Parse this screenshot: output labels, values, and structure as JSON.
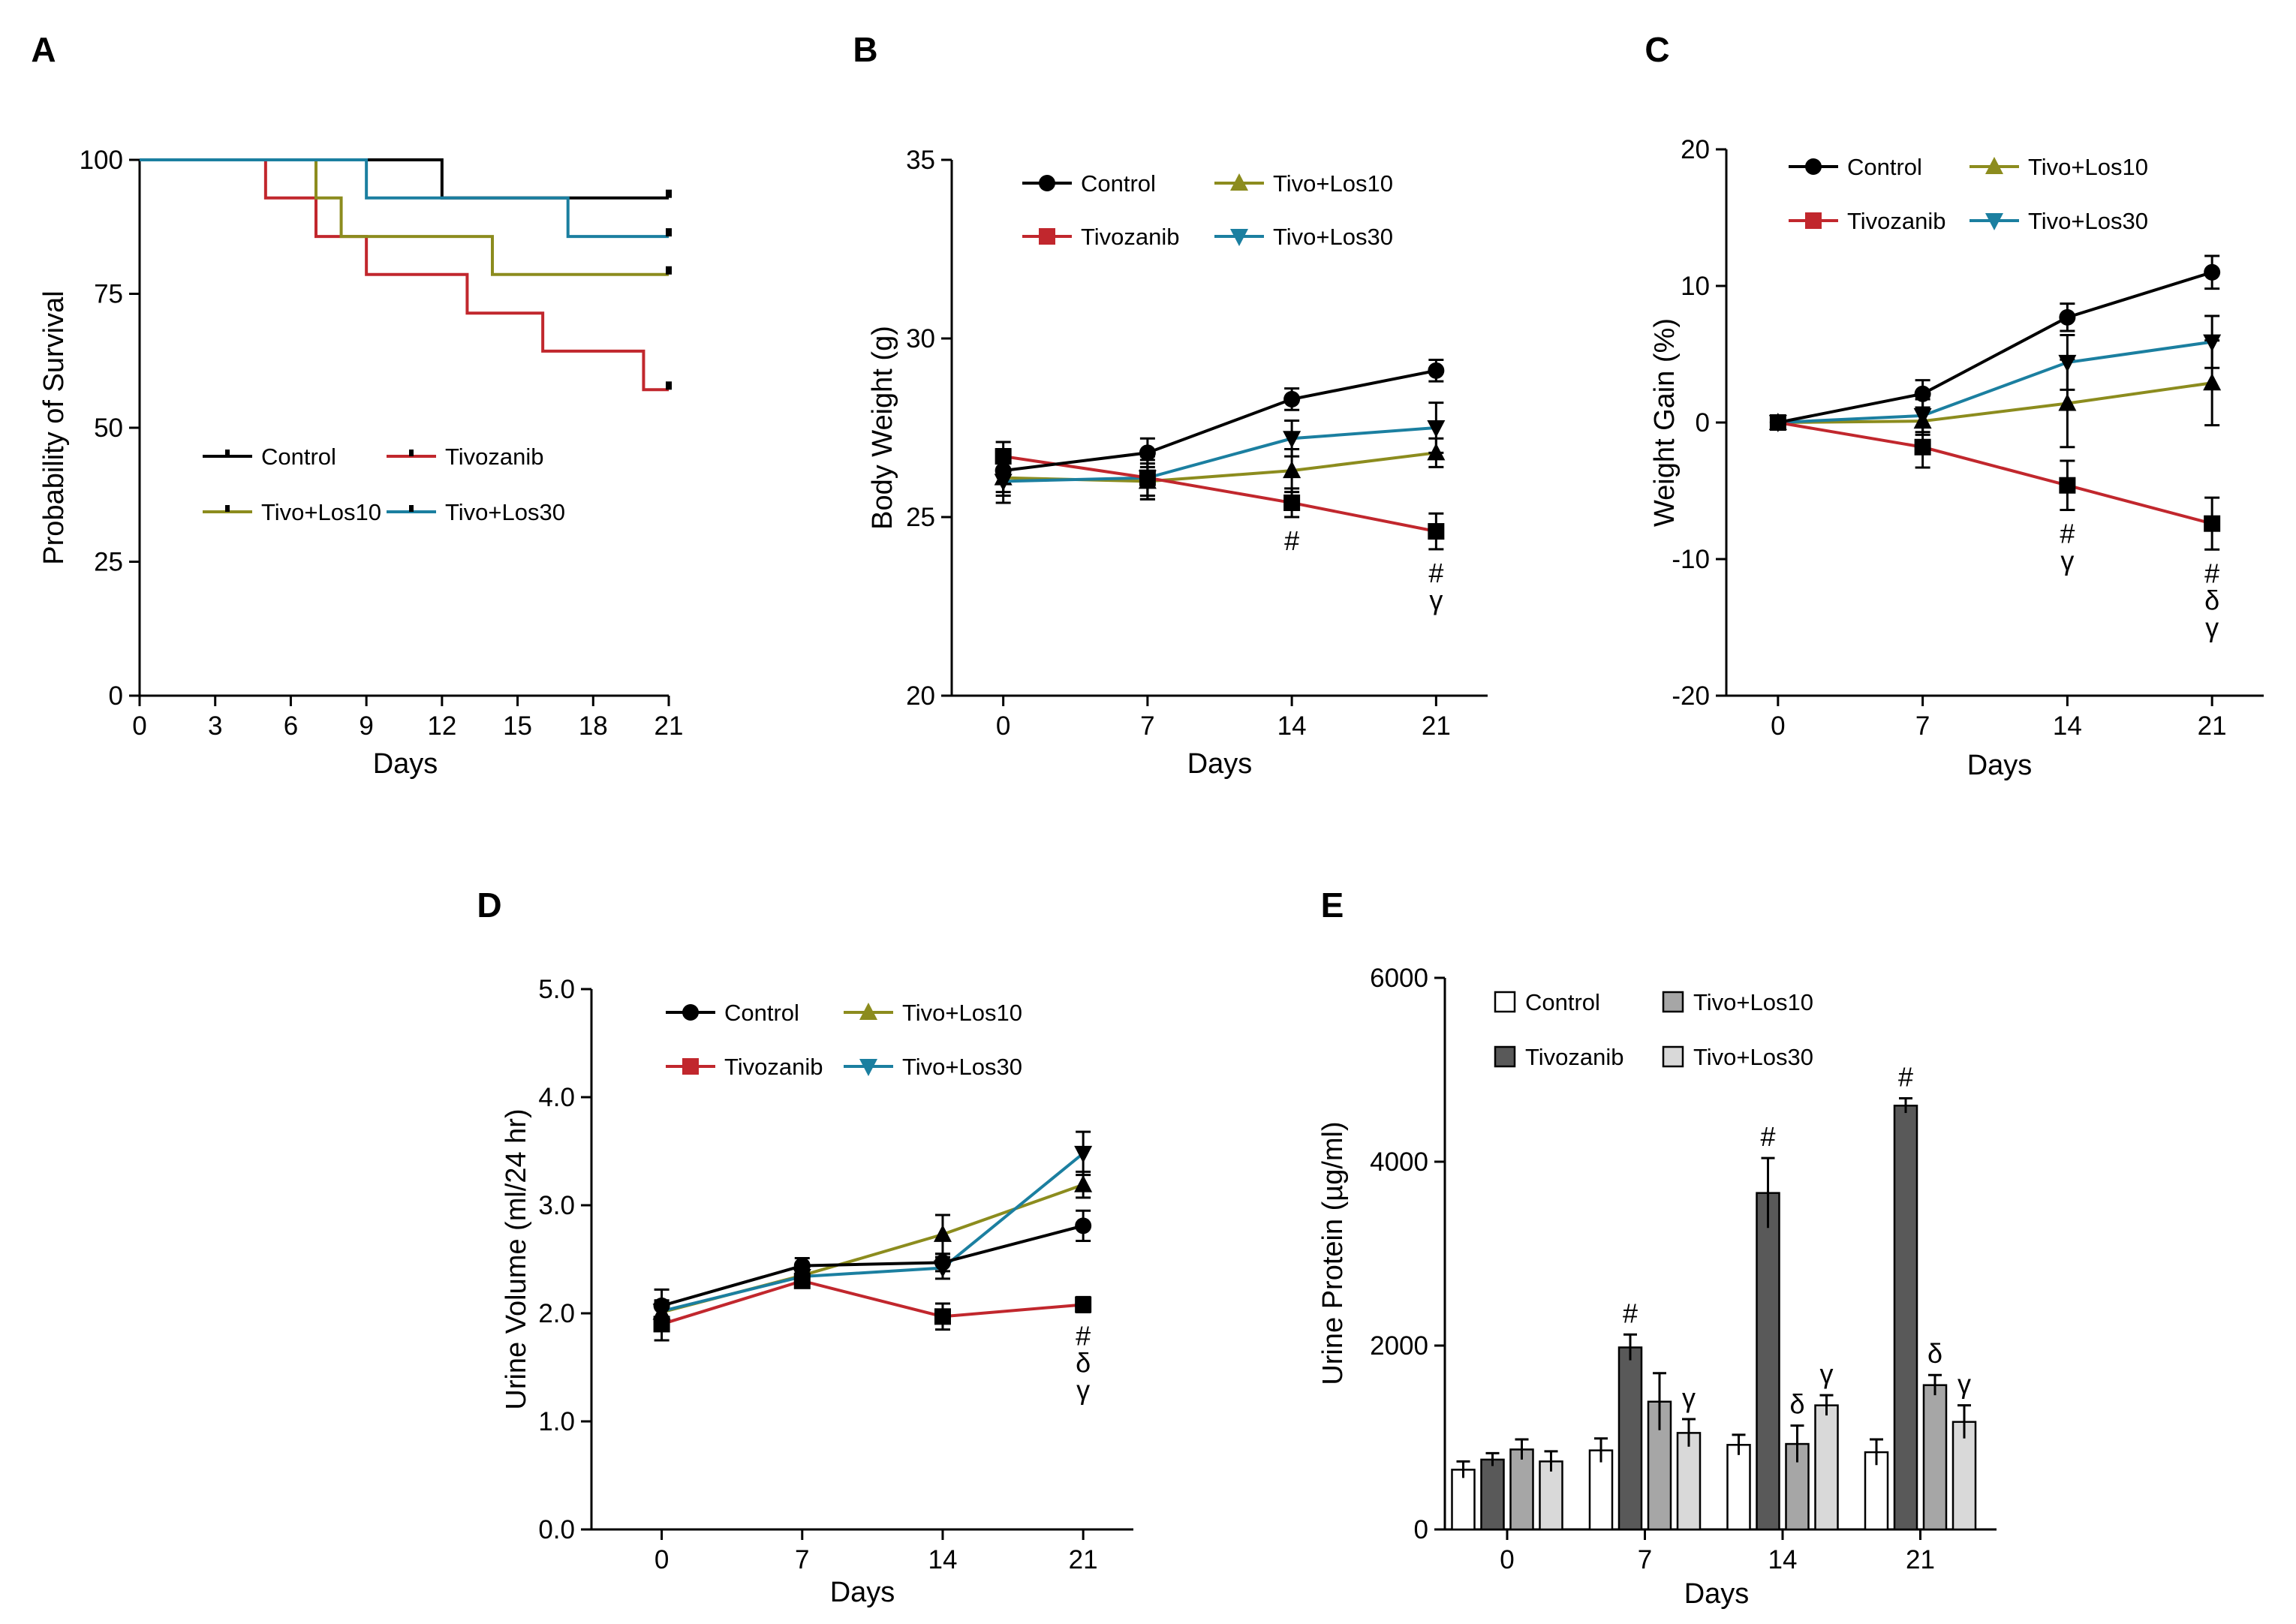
{
  "figure": {
    "colors": {
      "Control": "#000000",
      "Tivozanib": "#c1272d",
      "Tivo+Los10": "#8c8c1e",
      "Tivo+Los30": "#1b7fa0"
    },
    "bar_colors": {
      "Control": "#ffffff",
      "Tivozanib": "#595959",
      "Tivo+Los10": "#a6a6a6",
      "Tivo+Los30": "#d9d9d9"
    }
  },
  "chart_data": [
    {
      "id": "A",
      "label": "A",
      "type": "line",
      "subtype": "kaplan-meier",
      "xlabel": "Days",
      "ylabel": "Probability of Survival",
      "xlim": [
        0,
        21
      ],
      "ylim": [
        0,
        100
      ],
      "xticks": [
        0,
        3,
        6,
        9,
        12,
        15,
        18,
        21
      ],
      "xtick_labels": [
        "0",
        "3",
        "6",
        "9",
        "12",
        "15",
        "18",
        "21"
      ],
      "yticks": [
        0,
        25,
        50,
        75,
        100
      ],
      "ytick_labels": [
        "0",
        "25",
        "50",
        "75",
        "100"
      ],
      "legend": [
        "Control",
        "Tivozanib",
        "Tivo+Los10",
        "Tivo+Los30"
      ],
      "series": [
        {
          "name": "Control",
          "steps": [
            [
              0,
              100
            ],
            [
              12,
              92.9
            ],
            [
              21,
              92.9
            ]
          ]
        },
        {
          "name": "Tivozanib",
          "steps": [
            [
              0,
              100
            ],
            [
              5,
              92.9
            ],
            [
              7,
              85.7
            ],
            [
              9,
              78.6
            ],
            [
              13,
              71.4
            ],
            [
              16,
              64.3
            ],
            [
              20,
              57.1
            ],
            [
              21,
              57.1
            ]
          ]
        },
        {
          "name": "Tivo+Los10",
          "steps": [
            [
              0,
              100
            ],
            [
              7,
              92.9
            ],
            [
              8,
              85.7
            ],
            [
              14,
              78.6
            ],
            [
              21,
              78.6
            ]
          ]
        },
        {
          "name": "Tivo+Los30",
          "steps": [
            [
              0,
              100
            ],
            [
              9,
              92.9
            ],
            [
              17,
              85.7
            ],
            [
              21,
              85.7
            ]
          ]
        }
      ]
    },
    {
      "id": "B",
      "label": "B",
      "type": "line",
      "xlabel": "Days",
      "ylabel": "Body Weight (g)",
      "xlim": [
        -2.5,
        23.5
      ],
      "ylim": [
        20,
        35
      ],
      "xticks": [
        0,
        7,
        14,
        21
      ],
      "xtick_labels": [
        "0",
        "7",
        "14",
        "21"
      ],
      "yticks": [
        20,
        25,
        30,
        35
      ],
      "ytick_labels": [
        "20",
        "25",
        "30",
        "35"
      ],
      "legend": [
        "Control",
        "Tivo+Los10",
        "Tivozanib",
        "Tivo+Los30"
      ],
      "x": [
        0,
        7,
        14,
        21
      ],
      "series": [
        {
          "name": "Control",
          "marker": "circle",
          "values": [
            26.3,
            26.8,
            28.3,
            29.1
          ],
          "err": [
            0.6,
            0.4,
            0.3,
            0.3
          ]
        },
        {
          "name": "Tivozanib",
          "marker": "square",
          "values": [
            26.7,
            26.1,
            25.4,
            24.6
          ],
          "err": [
            0.4,
            0.6,
            0.4,
            0.5
          ]
        },
        {
          "name": "Tivo+Los10",
          "marker": "triangle-up",
          "values": [
            26.1,
            26.0,
            26.3,
            26.8
          ],
          "err": [
            0.5,
            0.5,
            0.6,
            0.4
          ]
        },
        {
          "name": "Tivo+Los30",
          "marker": "triangle-down",
          "values": [
            26.0,
            26.1,
            27.2,
            27.5
          ],
          "err": [
            0.6,
            0.5,
            0.5,
            0.7
          ]
        }
      ],
      "annotations": [
        {
          "x": 14,
          "text": [
            "#"
          ]
        },
        {
          "x": 21,
          "text": [
            "#",
            "γ"
          ]
        }
      ]
    },
    {
      "id": "C",
      "label": "C",
      "type": "line",
      "xlabel": "Days",
      "ylabel": "Weight Gain (%)",
      "xlim": [
        -2.5,
        23.5
      ],
      "ylim": [
        -20,
        20
      ],
      "xticks": [
        0,
        7,
        14,
        21
      ],
      "xtick_labels": [
        "0",
        "7",
        "14",
        "21"
      ],
      "yticks": [
        -20,
        -10,
        0,
        10,
        20
      ],
      "ytick_labels": [
        "-20",
        "-10",
        "0",
        "10",
        "20"
      ],
      "legend": [
        "Control",
        "Tivo+Los10",
        "Tivozanib",
        "Tivo+Los30"
      ],
      "x": [
        0,
        7,
        14,
        21
      ],
      "series": [
        {
          "name": "Control",
          "marker": "circle",
          "values": [
            0,
            2.1,
            7.7,
            11.0
          ],
          "err": [
            0,
            1.0,
            1.0,
            1.2
          ]
        },
        {
          "name": "Tivozanib",
          "marker": "square",
          "values": [
            0,
            -1.8,
            -4.6,
            -7.4
          ],
          "err": [
            0,
            1.5,
            1.8,
            1.9
          ]
        },
        {
          "name": "Tivo+Los10",
          "marker": "triangle-up",
          "values": [
            0,
            0.1,
            1.4,
            2.9
          ],
          "err": [
            0,
            1.0,
            3.2,
            3.1
          ]
        },
        {
          "name": "Tivo+Los30",
          "marker": "triangle-down",
          "values": [
            0,
            0.5,
            4.4,
            5.9
          ],
          "err": [
            0,
            1.2,
            2.0,
            1.9
          ]
        }
      ],
      "annotations": [
        {
          "x": 14,
          "text": [
            "#",
            "γ"
          ]
        },
        {
          "x": 21,
          "text": [
            "#",
            "δ",
            "γ"
          ]
        }
      ]
    },
    {
      "id": "D",
      "label": "D",
      "type": "line",
      "xlabel": "Days",
      "ylabel": "Urine Volume (ml/24 hr)",
      "xlim": [
        -3.5,
        23.5
      ],
      "ylim": [
        0,
        5
      ],
      "xticks": [
        0,
        7,
        14,
        21
      ],
      "xtick_labels": [
        "0",
        "7",
        "14",
        "21"
      ],
      "yticks": [
        0,
        1,
        2,
        3,
        4,
        5
      ],
      "ytick_labels": [
        "0.0",
        "1.0",
        "2.0",
        "3.0",
        "4.0",
        "5.0"
      ],
      "legend": [
        "Control",
        "Tivo+Los10",
        "Tivozanib",
        "Tivo+Los30"
      ],
      "x": [
        0,
        7,
        14,
        21
      ],
      "series": [
        {
          "name": "Control",
          "marker": "circle",
          "values": [
            2.07,
            2.44,
            2.47,
            2.81
          ],
          "err": [
            0.15,
            0.07,
            0.08,
            0.14
          ]
        },
        {
          "name": "Tivozanib",
          "marker": "square",
          "values": [
            1.9,
            2.3,
            1.97,
            2.08
          ],
          "err": [
            0.15,
            0.06,
            0.12,
            0.07
          ]
        },
        {
          "name": "Tivo+Los10",
          "marker": "triangle-up",
          "values": [
            2.01,
            2.35,
            2.73,
            3.19
          ],
          "err": [
            0.1,
            0.07,
            0.18,
            0.12
          ]
        },
        {
          "name": "Tivo+Los30",
          "marker": "triangle-down",
          "values": [
            2.02,
            2.34,
            2.42,
            3.48
          ],
          "err": [
            0.1,
            0.07,
            0.1,
            0.2
          ]
        }
      ],
      "annotations": [
        {
          "x": 21,
          "text": [
            "#",
            "δ",
            "γ"
          ]
        }
      ]
    },
    {
      "id": "E",
      "label": "E",
      "type": "bar",
      "xlabel": "Days",
      "ylabel": "Urine Protein (µg/ml)",
      "ylim": [
        0,
        6000
      ],
      "categories": [
        "0",
        "7",
        "14",
        "21"
      ],
      "yticks": [
        0,
        2000,
        4000,
        6000
      ],
      "ytick_labels": [
        "0",
        "2000",
        "4000",
        "6000"
      ],
      "legend": [
        "Control",
        "Tivo+Los10",
        "Tivozanib",
        "Tivo+Los30"
      ],
      "series": [
        {
          "name": "Control",
          "values": [
            650,
            860,
            920,
            840
          ],
          "err": [
            90,
            130,
            110,
            140
          ]
        },
        {
          "name": "Tivozanib",
          "values": [
            760,
            1980,
            3660,
            4610
          ],
          "err": [
            70,
            140,
            380,
            80
          ]
        },
        {
          "name": "Tivo+Los10",
          "values": [
            870,
            1390,
            930,
            1570
          ],
          "err": [
            110,
            310,
            200,
            110
          ]
        },
        {
          "name": "Tivo+Los30",
          "values": [
            740,
            1050,
            1350,
            1170
          ],
          "err": [
            110,
            150,
            110,
            180
          ]
        }
      ],
      "annotations": [
        {
          "category": 1,
          "series": 1,
          "text": "#"
        },
        {
          "category": 1,
          "series": 3,
          "text": "γ"
        },
        {
          "category": 2,
          "series": 1,
          "text": "#"
        },
        {
          "category": 2,
          "series": 2,
          "text": "δ"
        },
        {
          "category": 2,
          "series": 3,
          "text": "γ"
        },
        {
          "category": 3,
          "series": 1,
          "text": "#"
        },
        {
          "category": 3,
          "series": 2,
          "text": "δ"
        },
        {
          "category": 3,
          "series": 3,
          "text": "γ"
        }
      ]
    }
  ]
}
